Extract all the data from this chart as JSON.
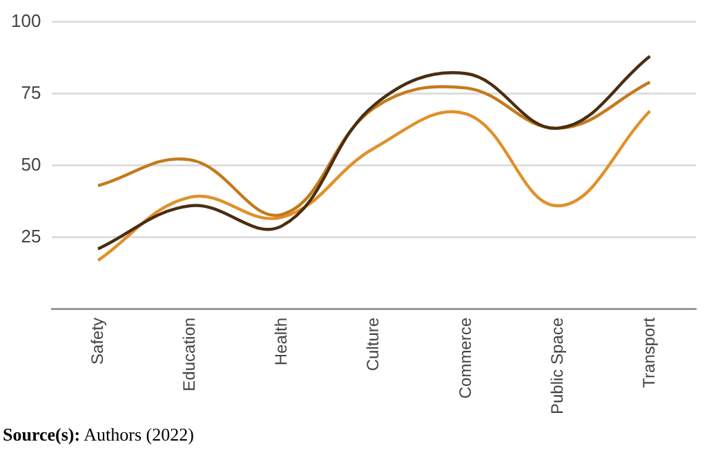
{
  "chart_data": {
    "type": "line",
    "categories": [
      "Safety",
      "Education",
      "Health",
      "Culture",
      "Commerce",
      "Public Space",
      "Transport"
    ],
    "series": [
      {
        "color": "#4a2e12",
        "values": [
          21,
          36,
          29,
          71,
          82,
          63,
          88
        ]
      },
      {
        "color": "#c47a1c",
        "values": [
          43,
          52,
          33,
          70,
          77,
          63,
          79
        ]
      },
      {
        "color": "#e0902a",
        "values": [
          17,
          39,
          32,
          56,
          68,
          36,
          69
        ]
      }
    ],
    "ylim": [
      0,
      100
    ],
    "yticks": [
      25,
      50,
      75,
      100
    ],
    "grid": "y",
    "legend": false,
    "marker": "none",
    "line_style": "solid",
    "annotations": [
      "Source(s): Authors (2022)"
    ]
  }
}
